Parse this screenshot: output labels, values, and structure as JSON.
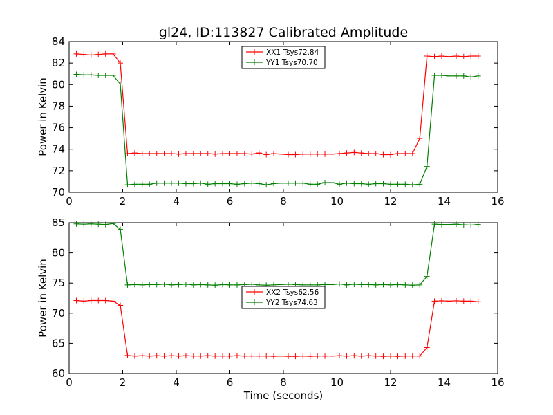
{
  "figure_title": "gl24, ID:113827 Calibrated Amplitude",
  "chart_data": [
    {
      "type": "line",
      "title": "gl24, ID:113827 Calibrated Amplitude",
      "xlabel": "",
      "ylabel": "Power in Kelvin",
      "xlim": [
        0,
        16
      ],
      "ylim": [
        70,
        84
      ],
      "xticks": [
        0,
        2,
        4,
        6,
        8,
        10,
        12,
        14,
        16
      ],
      "yticks": [
        70,
        72,
        74,
        76,
        78,
        80,
        82,
        84
      ],
      "legend_position": "top-center",
      "x": [
        0.27,
        0.55,
        0.82,
        1.09,
        1.36,
        1.64,
        1.91,
        2.18,
        2.45,
        2.73,
        3.0,
        3.27,
        3.55,
        3.82,
        4.09,
        4.36,
        4.64,
        4.91,
        5.18,
        5.45,
        5.73,
        6.0,
        6.27,
        6.55,
        6.82,
        7.09,
        7.36,
        7.64,
        7.91,
        8.18,
        8.45,
        8.73,
        9.0,
        9.27,
        9.55,
        9.82,
        10.09,
        10.36,
        10.64,
        10.91,
        11.18,
        11.45,
        11.73,
        12.0,
        12.27,
        12.55,
        12.82,
        13.09,
        13.36,
        13.64,
        13.91,
        14.18,
        14.45,
        14.73,
        15.0,
        15.27
      ],
      "series": [
        {
          "name": "XX1 Tsys72.84",
          "color": "#ff0000",
          "values": [
            82.85,
            82.8,
            82.75,
            82.8,
            82.85,
            82.85,
            82.0,
            73.6,
            73.65,
            73.6,
            73.6,
            73.6,
            73.6,
            73.6,
            73.55,
            73.6,
            73.6,
            73.6,
            73.6,
            73.55,
            73.6,
            73.6,
            73.6,
            73.6,
            73.55,
            73.65,
            73.5,
            73.6,
            73.55,
            73.5,
            73.5,
            73.55,
            73.55,
            73.55,
            73.55,
            73.55,
            73.6,
            73.65,
            73.7,
            73.65,
            73.6,
            73.6,
            73.5,
            73.5,
            73.6,
            73.6,
            73.6,
            75.0,
            82.65,
            82.6,
            82.65,
            82.6,
            82.65,
            82.6,
            82.65,
            82.65
          ]
        },
        {
          "name": "YY1 Tsys70.70",
          "color": "#008000",
          "values": [
            80.95,
            80.9,
            80.9,
            80.85,
            80.85,
            80.85,
            80.05,
            70.7,
            70.75,
            70.75,
            70.75,
            70.85,
            70.85,
            70.85,
            70.85,
            70.8,
            70.8,
            70.85,
            70.75,
            70.8,
            70.8,
            70.8,
            70.75,
            70.8,
            70.85,
            70.8,
            70.7,
            70.8,
            70.85,
            70.85,
            70.85,
            70.85,
            70.75,
            70.75,
            70.9,
            70.9,
            70.75,
            70.85,
            70.8,
            70.8,
            70.75,
            70.8,
            70.8,
            70.75,
            70.75,
            70.75,
            70.7,
            70.75,
            72.4,
            80.85,
            80.85,
            80.8,
            80.8,
            80.8,
            80.7,
            80.8
          ]
        }
      ]
    },
    {
      "type": "line",
      "title": "",
      "xlabel": "Time (seconds)",
      "ylabel": "Power in Kelvin",
      "xlim": [
        0,
        16
      ],
      "ylim": [
        60,
        85
      ],
      "xticks": [
        0,
        2,
        4,
        6,
        8,
        10,
        12,
        14,
        16
      ],
      "yticks": [
        60,
        65,
        70,
        75,
        80,
        85
      ],
      "legend_position": "center",
      "x": [
        0.27,
        0.55,
        0.82,
        1.09,
        1.36,
        1.64,
        1.91,
        2.18,
        2.45,
        2.73,
        3.0,
        3.27,
        3.55,
        3.82,
        4.09,
        4.36,
        4.64,
        4.91,
        5.18,
        5.45,
        5.73,
        6.0,
        6.27,
        6.55,
        6.82,
        7.09,
        7.36,
        7.64,
        7.91,
        8.18,
        8.45,
        8.73,
        9.0,
        9.27,
        9.55,
        9.82,
        10.09,
        10.36,
        10.64,
        10.91,
        11.18,
        11.45,
        11.73,
        12.0,
        12.27,
        12.55,
        12.82,
        13.09,
        13.36,
        13.64,
        13.91,
        14.18,
        14.45,
        14.73,
        15.0,
        15.27
      ],
      "series": [
        {
          "name": "XX2 Tsys62.56",
          "color": "#ff0000",
          "values": [
            72.1,
            72.0,
            72.1,
            72.1,
            72.1,
            72.0,
            71.3,
            63.0,
            62.9,
            62.95,
            62.9,
            62.95,
            62.9,
            62.95,
            62.9,
            62.95,
            62.9,
            62.9,
            62.95,
            62.9,
            62.9,
            62.9,
            62.95,
            62.9,
            62.9,
            62.9,
            62.9,
            62.85,
            62.9,
            62.85,
            62.85,
            62.9,
            62.85,
            62.9,
            62.9,
            62.9,
            62.95,
            62.9,
            62.95,
            62.9,
            62.95,
            62.9,
            62.85,
            62.9,
            62.85,
            62.9,
            62.9,
            62.9,
            64.3,
            72.0,
            72.05,
            72.0,
            72.05,
            72.0,
            72.0,
            71.9
          ]
        },
        {
          "name": "YY2 Tsys74.63",
          "color": "#008000",
          "values": [
            84.8,
            84.75,
            84.8,
            84.75,
            84.7,
            84.85,
            83.9,
            74.7,
            74.75,
            74.7,
            74.75,
            74.75,
            74.8,
            74.7,
            74.75,
            74.8,
            74.7,
            74.75,
            74.7,
            74.65,
            74.75,
            74.7,
            74.7,
            74.75,
            74.8,
            74.7,
            74.65,
            74.7,
            74.75,
            74.8,
            74.75,
            74.7,
            74.7,
            74.7,
            74.75,
            74.75,
            74.85,
            74.7,
            74.8,
            74.75,
            74.75,
            74.7,
            74.75,
            74.7,
            74.75,
            74.7,
            74.65,
            74.7,
            76.1,
            84.75,
            84.7,
            84.7,
            84.75,
            84.65,
            84.6,
            84.7
          ]
        }
      ]
    }
  ]
}
